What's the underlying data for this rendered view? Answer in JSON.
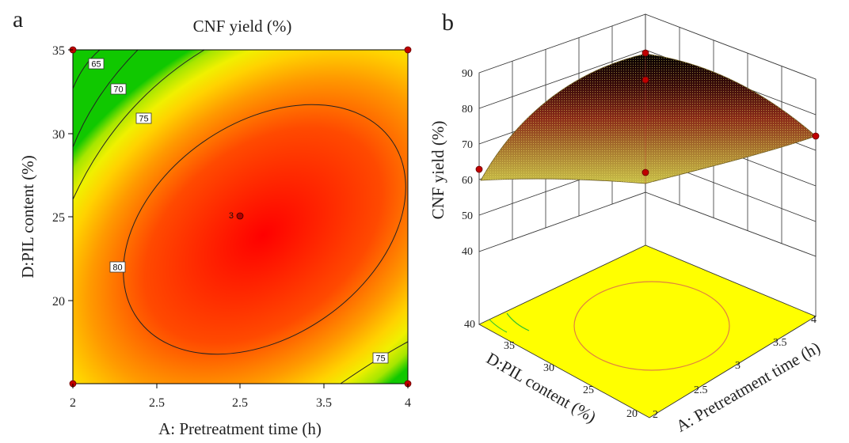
{
  "chart_data": [
    {
      "type": "heatmap",
      "panel_label": "a",
      "title": "CNF yield (%)",
      "xlabel": "A: Pretreatment time (h)",
      "ylabel": "D:PIL content (%)",
      "xticks": [
        "2",
        "2.5",
        "2.5",
        "3.5",
        "4"
      ],
      "yticks": [
        "20",
        "25",
        "30",
        "35"
      ],
      "xlim": [
        2,
        4
      ],
      "ylim": [
        15,
        35
      ],
      "contour_levels": [
        "65",
        "70",
        "75",
        "80",
        "75"
      ],
      "design_points": [
        {
          "x": 2,
          "y": 15
        },
        {
          "x": 4,
          "y": 15
        },
        {
          "x": 2,
          "y": 35
        },
        {
          "x": 4,
          "y": 35
        },
        {
          "x": 3,
          "y": 25,
          "label": "3"
        }
      ],
      "colors": {
        "high": "#ff0000",
        "mid": "#ff9000",
        "low": "#ffff00",
        "lowest": "#00d000"
      }
    },
    {
      "type": "surface",
      "panel_label": "b",
      "zlabel": "CNF yield (%)",
      "xlabel": "A: Pretreatment time (h)",
      "ylabel": "D:PIL content (%)",
      "zticks": [
        "40",
        "50",
        "60",
        "70",
        "80",
        "90"
      ],
      "xticks": [
        "2",
        "2.5",
        "3",
        "3.5",
        "4"
      ],
      "yticks": [
        "20",
        "25",
        "30",
        "35",
        "40"
      ],
      "zlim": [
        40,
        90
      ],
      "floor_color": "#ffff00"
    }
  ]
}
